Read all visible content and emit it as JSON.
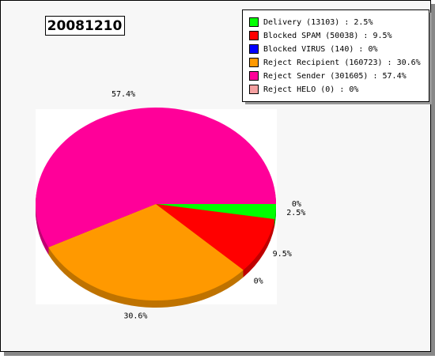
{
  "chart_data": {
    "type": "pie",
    "title": "20081210",
    "categories": [
      "Delivery (13103) : 2.5%",
      "Blocked SPAM (50038) : 9.5%",
      "Blocked VIRUS (140) : 0%",
      "Reject Recipient (160723) : 30.6%",
      "Reject Sender (301605) : 57.4%",
      "Reject HELO (0) : 0%"
    ],
    "values": [
      2.5,
      9.5,
      0,
      30.6,
      57.4,
      0
    ],
    "value_labels": [
      "2.5%",
      "9.5%",
      "0%",
      "30.6%",
      "57.4%",
      "0%"
    ],
    "colors": [
      "#00ff00",
      "#ff0000",
      "#0000ff",
      "#ff9900",
      "#ff0099",
      "#f4a0a0"
    ]
  }
}
